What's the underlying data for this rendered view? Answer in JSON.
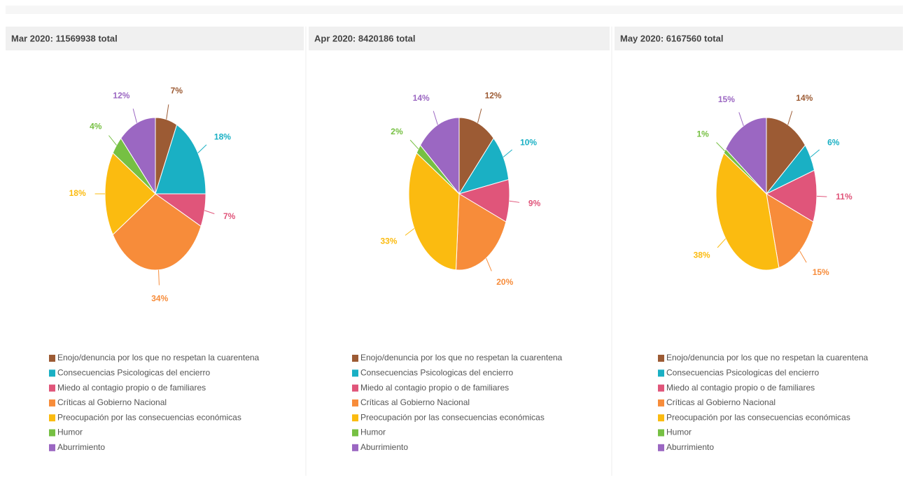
{
  "chart_data": [
    {
      "type": "pie",
      "title": "Mar 2020: 11569938 total",
      "categories": [
        "Enojo/denuncia por los que no respetan la cuarentena",
        "Consecuencias Psicologicas del encierro",
        "Miedo al contagio propio o de familiares",
        "Críticas al Gobierno Nacional",
        "Preocupación por las consecuencias económicas",
        "Humor",
        "Aburrimiento"
      ],
      "values": [
        7,
        18,
        7,
        34,
        18,
        4,
        12
      ],
      "value_labels": [
        "7%",
        "18%",
        "7%",
        "34%",
        "18%",
        "4%",
        "12%"
      ],
      "colors": [
        "#9c5b34",
        "#1ab0c4",
        "#e0557a",
        "#f78c3a",
        "#fbbb10",
        "#76c043",
        "#9b67c2"
      ]
    },
    {
      "type": "pie",
      "title": "Apr 2020: 8420186 total",
      "categories": [
        "Enojo/denuncia por los que no respetan la cuarentena",
        "Consecuencias Psicologicas del encierro",
        "Miedo al contagio propio o de familiares",
        "Críticas al Gobierno Nacional",
        "Preocupación por las consecuencias económicas",
        "Humor",
        "Aburrimiento"
      ],
      "values": [
        12,
        10,
        9,
        20,
        33,
        2,
        14
      ],
      "value_labels": [
        "12%",
        "10%",
        "9%",
        "20%",
        "33%",
        "2%",
        "14%"
      ],
      "colors": [
        "#9c5b34",
        "#1ab0c4",
        "#e0557a",
        "#f78c3a",
        "#fbbb10",
        "#76c043",
        "#9b67c2"
      ]
    },
    {
      "type": "pie",
      "title": "May 2020: 6167560 total",
      "categories": [
        "Enojo/denuncia por los que no respetan la cuarentena",
        "Consecuencias Psicologicas del encierro",
        "Miedo al contagio propio o de familiares",
        "Críticas al Gobierno Nacional",
        "Preocupación por las consecuencias económicas",
        "Humor",
        "Aburrimiento"
      ],
      "values": [
        14,
        6,
        11,
        15,
        38,
        1,
        15
      ],
      "value_labels": [
        "14%",
        "6%",
        "11%",
        "15%",
        "38%",
        "1%",
        "15%"
      ],
      "colors": [
        "#9c5b34",
        "#1ab0c4",
        "#e0557a",
        "#f78c3a",
        "#fbbb10",
        "#76c043",
        "#9b67c2"
      ]
    }
  ]
}
